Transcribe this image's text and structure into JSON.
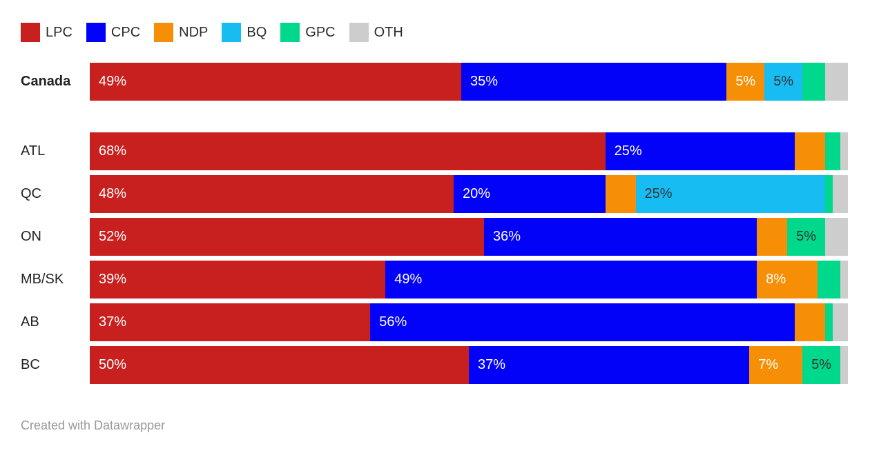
{
  "footer": {
    "attribution": "Created with Datawrapper"
  },
  "chart_data": {
    "type": "bar",
    "variant": "horizontal-stacked",
    "title": "",
    "xlabel": "",
    "ylabel": "",
    "unit": "%",
    "value_suffix": "%",
    "min_label_value": 5,
    "legend_position": "top",
    "grid": false,
    "xlim": [
      0,
      100
    ],
    "parties": [
      {
        "id": "LPC",
        "label": "LPC",
        "color": "#c8201e",
        "label_text_color": "#ffffff"
      },
      {
        "id": "CPC",
        "label": "CPC",
        "color": "#0202f8",
        "label_text_color": "#ffffff"
      },
      {
        "id": "NDP",
        "label": "NDP",
        "color": "#f78f06",
        "label_text_color": "#ffffff"
      },
      {
        "id": "BQ",
        "label": "BQ",
        "color": "#17bdf2",
        "label_text_color": "#333333"
      },
      {
        "id": "GPC",
        "label": "GPC",
        "color": "#00d98c",
        "label_text_color": "#333333"
      },
      {
        "id": "OTH",
        "label": "OTH",
        "color": "#cdcdcd",
        "label_text_color": "#333333"
      }
    ],
    "categories": [
      "Canada",
      "ATL",
      "QC",
      "ON",
      "MB/SK",
      "AB",
      "BC"
    ],
    "rows": [
      {
        "label": "Canada",
        "lead": true,
        "values": {
          "LPC": 49,
          "CPC": 35,
          "NDP": 5,
          "BQ": 5,
          "GPC": 3,
          "OTH": 3
        }
      },
      {
        "label": "ATL",
        "lead": false,
        "values": {
          "LPC": 68,
          "CPC": 25,
          "NDP": 4,
          "BQ": 0,
          "GPC": 2,
          "OTH": 1
        }
      },
      {
        "label": "QC",
        "lead": false,
        "values": {
          "LPC": 48,
          "CPC": 20,
          "NDP": 4,
          "BQ": 25,
          "GPC": 1,
          "OTH": 2
        }
      },
      {
        "label": "ON",
        "lead": false,
        "values": {
          "LPC": 52,
          "CPC": 36,
          "NDP": 4,
          "BQ": 0,
          "GPC": 5,
          "OTH": 3
        }
      },
      {
        "label": "MB/SK",
        "lead": false,
        "values": {
          "LPC": 39,
          "CPC": 49,
          "NDP": 8,
          "BQ": 0,
          "GPC": 3,
          "OTH": 1
        }
      },
      {
        "label": "AB",
        "lead": false,
        "values": {
          "LPC": 37,
          "CPC": 56,
          "NDP": 4,
          "BQ": 0,
          "GPC": 1,
          "OTH": 2
        }
      },
      {
        "label": "BC",
        "lead": false,
        "values": {
          "LPC": 50,
          "CPC": 37,
          "NDP": 7,
          "BQ": 0,
          "GPC": 5,
          "OTH": 1
        }
      }
    ]
  }
}
